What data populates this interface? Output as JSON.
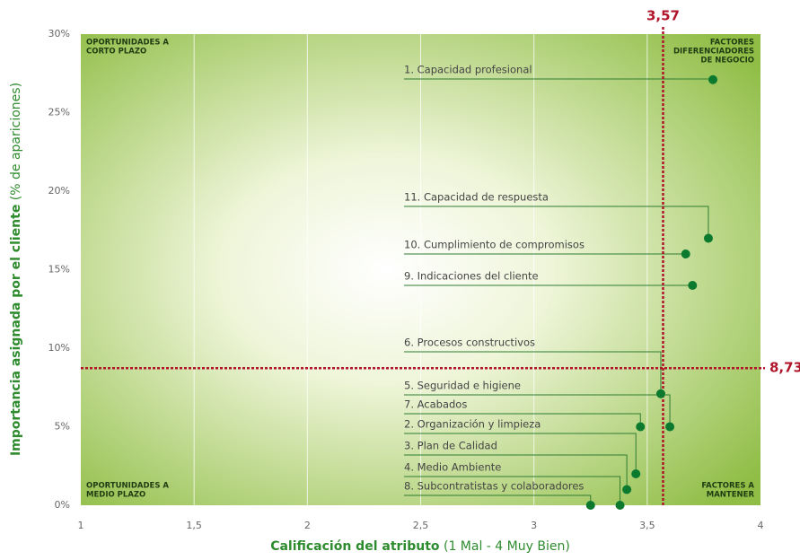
{
  "chart_data": {
    "type": "scatter",
    "x_label": {
      "bold": "Calificación del atributo",
      "normal": "(1 Mal - 4 Muy Bien)"
    },
    "y_label": {
      "bold": "Importancia asignada por el cliente",
      "normal": "(% de apariciones)"
    },
    "labels": [
      "1. Capacidad profesional",
      "11. Capacidad de respuesta",
      "10. Cumplimiento de compromisos",
      "9. Indicaciones del cliente",
      "6. Procesos constructivos",
      "5. Seguridad e higiene",
      "7. Acabados",
      "2. Organización y limpieza",
      "3. Plan de Calidad",
      "4. Medio Ambiente",
      "8. Subcontratistas y colaboradores"
    ],
    "x": [
      3.79,
      3.77,
      3.67,
      3.7,
      3.56,
      3.6,
      3.47,
      3.45,
      3.41,
      3.38,
      3.25
    ],
    "values": [
      27.1,
      17.0,
      16.0,
      14.0,
      7.1,
      5.0,
      5.0,
      2.0,
      1.0,
      0,
      0
    ],
    "color": "#0b7a2f",
    "xlim": [
      1,
      4
    ],
    "xticks": [
      1,
      {
        "value": 1.5,
        "label": "1,5"
      },
      2,
      {
        "value": 2.5,
        "label": "2,5"
      },
      3,
      {
        "value": 3.5,
        "label": "3,5"
      },
      4
    ],
    "ylim": [
      0,
      30
    ],
    "yticks": [
      {
        "value": 0,
        "label": "0%"
      },
      {
        "value": 5,
        "label": "5%"
      },
      {
        "value": 10,
        "label": "10%"
      },
      {
        "value": 15,
        "label": "15%"
      },
      {
        "value": 20,
        "label": "20%"
      },
      {
        "value": 25,
        "label": "25%"
      },
      {
        "value": 30,
        "label": "30%"
      }
    ],
    "grid": true,
    "reference_lines": {
      "x": {
        "value": 3.57,
        "label": "3,57"
      },
      "y": {
        "value": 8.73,
        "label": "8,73"
      },
      "color": "#b0152a"
    },
    "quadrants": {
      "top_left": [
        "OPORTUNIDADES A",
        "CORTO PLAZO"
      ],
      "top_right": [
        "FACTORES",
        "DIFERENCIADORES",
        "DE NEGOCIO"
      ],
      "bottom_left": [
        "OPORTUNIDADES A",
        "MEDIO PLAZO"
      ],
      "bottom_right": [
        "FACTORES A",
        "MANTENER"
      ]
    }
  }
}
